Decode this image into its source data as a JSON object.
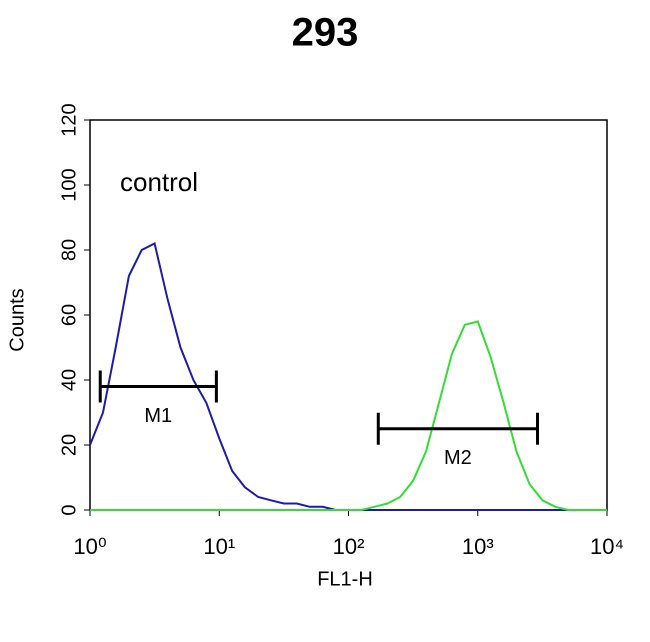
{
  "chart_data": {
    "type": "line",
    "title": "293",
    "xlabel": "FL1-H",
    "ylabel": "Counts",
    "annotation": "control",
    "log_x": true,
    "xlim": [
      1,
      10000
    ],
    "xticks": [
      {
        "value": 1,
        "label": "10⁰"
      },
      {
        "value": 10,
        "label": "10¹"
      },
      {
        "value": 100,
        "label": "10²"
      },
      {
        "value": 1000,
        "label": "10³"
      },
      {
        "value": 10000,
        "label": "10⁴"
      }
    ],
    "ylim": [
      0,
      120
    ],
    "yticks": [
      0,
      20,
      40,
      60,
      80,
      100,
      120
    ],
    "x": [
      1,
      1.26,
      1.58,
      2,
      2.51,
      3.16,
      3.98,
      5.01,
      6.31,
      7.94,
      10,
      12.6,
      15.8,
      20,
      25.1,
      31.6,
      39.8,
      50.1,
      63.1,
      79.4,
      100,
      126,
      158,
      200,
      251,
      316,
      398,
      501,
      631,
      794,
      1000,
      1259,
      1585,
      1995,
      2512,
      3162,
      3981,
      5012,
      6310,
      7943,
      10000
    ],
    "series": [
      {
        "color": "#1c1ca8",
        "values": [
          20,
          30,
          50,
          72,
          80,
          82,
          65,
          50,
          40,
          33,
          22,
          12,
          7,
          4,
          3,
          2,
          2,
          1,
          1,
          0,
          0,
          0,
          0,
          0,
          0,
          0,
          0,
          0,
          0,
          0,
          0,
          0,
          0,
          0,
          0,
          0,
          0,
          0,
          0,
          0,
          0
        ]
      },
      {
        "color": "#33dd33",
        "values": [
          0,
          0,
          0,
          0,
          0,
          0,
          0,
          0,
          0,
          0,
          0,
          0,
          0,
          0,
          0,
          0,
          0,
          0,
          0,
          0,
          0,
          0,
          1,
          2,
          4,
          9,
          18,
          33,
          48,
          57,
          58,
          47,
          33,
          18,
          8,
          3,
          1,
          0,
          0,
          0,
          0
        ]
      }
    ],
    "markers": [
      {
        "label": "M1",
        "x": [
          1.2,
          9.5
        ],
        "y": 38
      },
      {
        "label": "M2",
        "x": [
          170,
          2900
        ],
        "y": 25
      }
    ]
  }
}
